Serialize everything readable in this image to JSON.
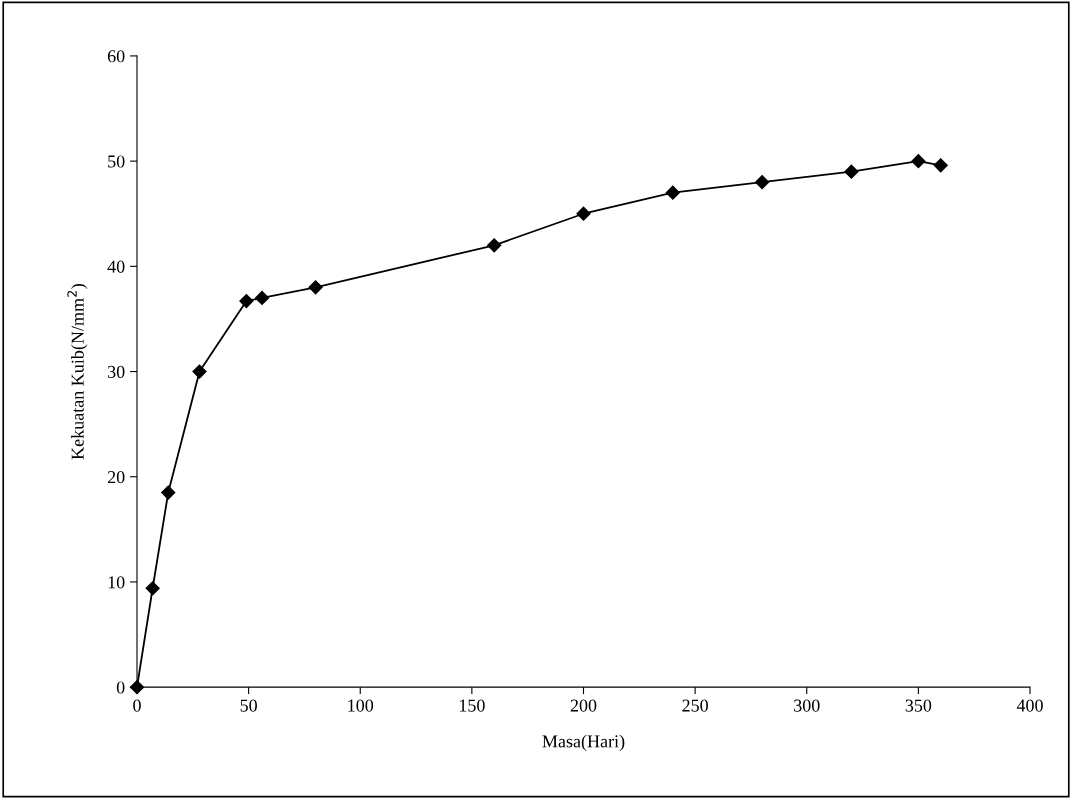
{
  "chart_data": {
    "type": "line",
    "xlabel": "Masa(Hari)",
    "ylabel": "Kekuatan Kuib(N/mm$^{2}$)",
    "x": [
      0,
      7,
      14,
      28,
      49,
      56,
      80,
      160,
      200,
      240,
      280,
      320,
      350,
      360
    ],
    "values": [
      0,
      9.4,
      18.5,
      30,
      36.7,
      37,
      38,
      42,
      45,
      47,
      48,
      49,
      50,
      49.6
    ],
    "color": "#000000",
    "marker": "diamond",
    "line_style": "solid",
    "grid": false,
    "legend": false,
    "xlim": [
      0,
      400
    ],
    "xticks": [
      0,
      50,
      100,
      150,
      200,
      250,
      300,
      350,
      400
    ],
    "ylim": [
      0,
      60
    ],
    "yticks": [
      0,
      10,
      20,
      30,
      40,
      50,
      60
    ]
  }
}
